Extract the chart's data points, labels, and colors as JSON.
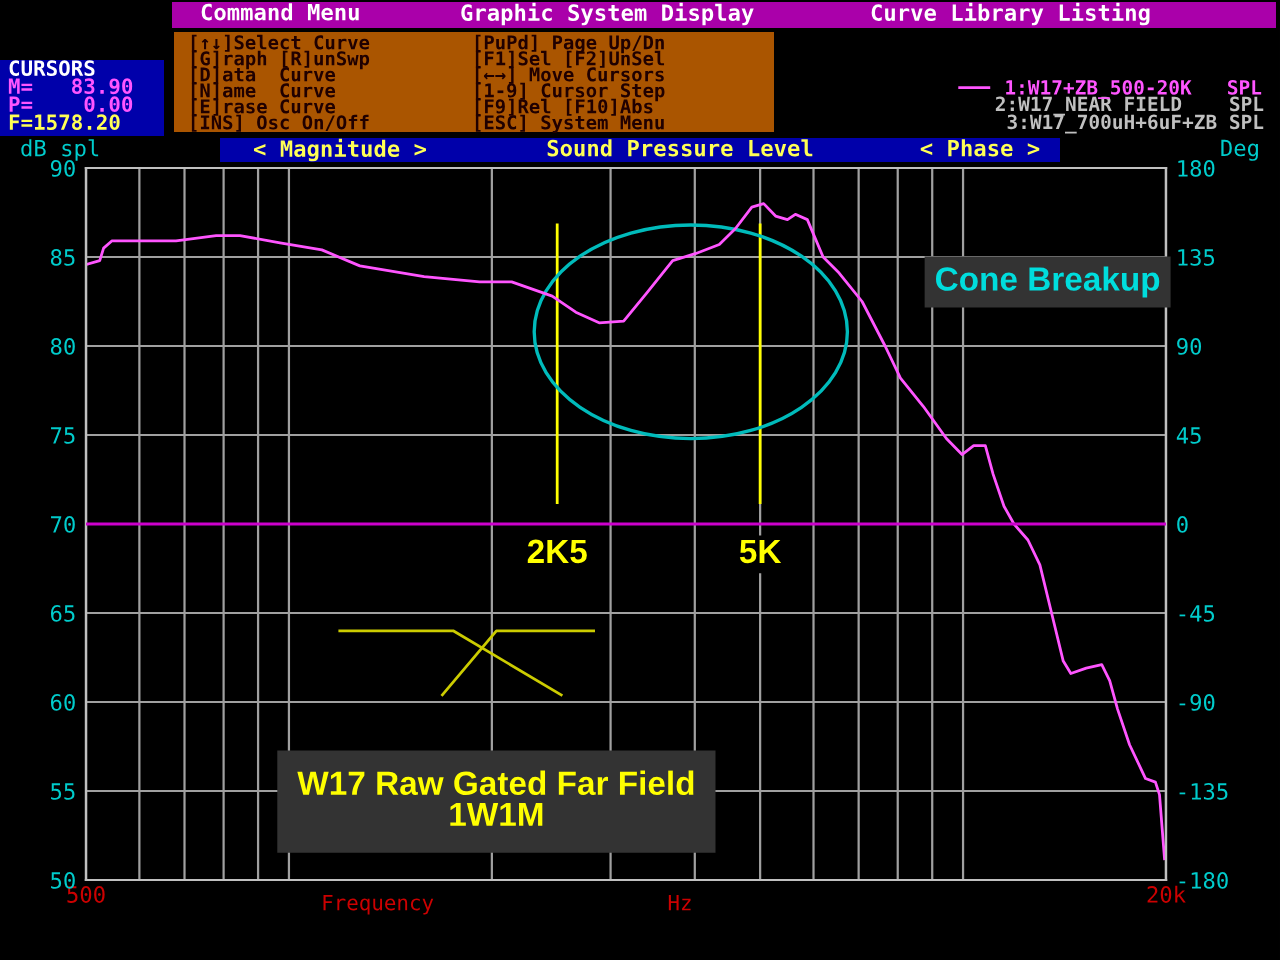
{
  "chart_data": {
    "type": "line",
    "title": "Sound Pressure Level",
    "xlabel": "Frequency",
    "ylabel": "dB spl",
    "y2label": "Deg",
    "log": "x",
    "xlim": [
      500,
      20000
    ],
    "ylim": [
      50,
      90
    ],
    "y2lim": [
      -180,
      180
    ],
    "xticks": [
      500,
      {
        "value": 600,
        "label": null
      },
      {
        "value": 700,
        "label": null
      },
      {
        "value": 800,
        "label": null
      },
      {
        "value": 900,
        "label": null
      },
      {
        "value": 1000,
        "label": null
      },
      {
        "value": 2000,
        "label": null
      },
      {
        "value": 3000,
        "label": null
      },
      {
        "value": 4000,
        "label": null
      },
      {
        "value": 5000,
        "label": null
      },
      {
        "value": 6000,
        "label": null
      },
      {
        "value": 7000,
        "label": null
      },
      {
        "value": 8000,
        "label": null
      },
      {
        "value": 9000,
        "label": null
      },
      {
        "value": 10000,
        "label": null
      },
      {
        "value": 20000,
        "label": "20k"
      }
    ],
    "yticks": [
      50,
      55,
      60,
      65,
      70,
      75,
      80,
      85,
      90
    ],
    "y2ticks": [
      -180,
      -135,
      -90,
      -45,
      0,
      45,
      90,
      135,
      180
    ],
    "grid": true,
    "legend": "top right",
    "marker": "none",
    "line_style": "solid",
    "series": [
      {
        "name": "1:W17+ZB_500-20K   SPL",
        "color": "#ff55ff",
        "x": [
          503,
          524,
          531,
          546,
          680,
          780,
          846,
          970,
          1119,
          1274,
          1587,
          1918,
          2140,
          2458,
          2664,
          2885,
          3137,
          3398,
          3709,
          4016,
          4349,
          4597,
          4860,
          5061,
          5271,
          5489,
          5639,
          5875,
          6200,
          6549,
          7083,
          7662,
          8075,
          8734,
          9446,
          9964,
          10370,
          10790,
          11080,
          11500,
          11900,
          12480,
          13000,
          13530,
          14080,
          14450,
          15230,
          16060,
          16500,
          16950,
          17660,
          18650,
          19290,
          19560,
          19900
        ],
        "values": [
          84.6,
          84.8,
          85.5,
          85.9,
          85.9,
          86.2,
          86.2,
          85.8,
          85.4,
          84.5,
          83.9,
          83.6,
          83.6,
          82.8,
          81.9,
          81.3,
          81.4,
          83.0,
          84.8,
          85.2,
          85.7,
          86.6,
          87.8,
          88.0,
          87.3,
          87.1,
          87.4,
          87.1,
          85.0,
          84.1,
          82.5,
          80.0,
          78.2,
          76.6,
          74.8,
          73.9,
          74.4,
          74.4,
          72.8,
          71.0,
          70.0,
          69.1,
          67.7,
          65.0,
          62.3,
          61.6,
          61.9,
          62.1,
          61.2,
          59.6,
          57.6,
          55.7,
          55.5,
          54.8,
          51.2
        ]
      }
    ],
    "ref_lines": [
      {
        "axis": "y2",
        "value": 0,
        "color": "#cc00cc"
      },
      {
        "axis": "x",
        "value": 2500,
        "label": "2K5",
        "color": "#ffff00"
      },
      {
        "axis": "x",
        "value": 5000,
        "label": "5K",
        "color": "#ffff00"
      }
    ],
    "annotations": [
      "Cone Breakup",
      "W17 Raw Gated Far Field\n1W1M",
      "Command Menu",
      "Graphic System Display",
      "Curve Library Listing",
      "CURSORS",
      "M=   83.90",
      "P=    0.00",
      "F=1578.20",
      "[↑↓]Select Curve",
      "[PuPd] Page Up/Dn",
      "[G]raph [R]unSwp",
      "[F1]Sel [F2]UnSel",
      "[D]ata  Curve",
      "[←→] Move Cursors",
      "[N]ame  Curve",
      "[1-9] Cursor Step",
      "[E]rase Curve",
      "[F9]Rel [F10]Abs",
      "[INS] Osc On/Off",
      "[ESC] System Menu",
      "2:W17_NEAR FIELD    SPL",
      "3:W17_700uH+6uF+ZB SPL",
      "< Magnitude >",
      "< Phase >",
      "Hz"
    ]
  }
}
